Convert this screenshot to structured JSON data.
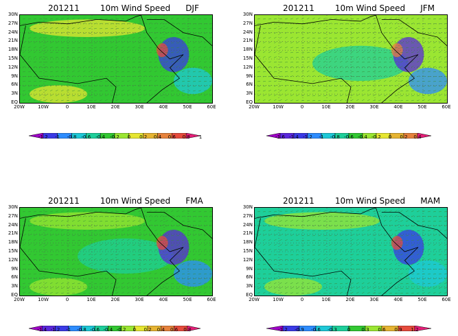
{
  "panels": [
    {
      "id": "djf",
      "date": "201211",
      "variable": "10m Wind Speed",
      "season": "DJF",
      "lat_labels": [
        "30N",
        "27N",
        "24N",
        "21N",
        "18N",
        "15N",
        "12N",
        "9N",
        "6N",
        "3N",
        "EQ"
      ],
      "lon_labels": [
        "20W",
        "10W",
        "0",
        "10E",
        "20E",
        "30E",
        "40E",
        "50E",
        "60E"
      ],
      "colorbar_labels": [
        "-1.2",
        "-1",
        "-0.8",
        "-0.6",
        "-0.4",
        "-0.2",
        "0",
        "0.2",
        "0.4",
        "0.6",
        "0.8",
        "1"
      ],
      "colorbar_colors": [
        "#a000c8",
        "#3a3ae6",
        "#2d8cff",
        "#1ec8d7",
        "#1ecf9a",
        "#32c832",
        "#9be632",
        "#e6e632",
        "#e6b432",
        "#e6823c",
        "#e64b3c",
        "#e61e78"
      ],
      "base_color": "#32c832"
    },
    {
      "id": "jfm",
      "date": "201211",
      "variable": "10m Wind Speed",
      "season": "JFM",
      "lat_labels": [
        "30N",
        "27N",
        "24N",
        "21N",
        "18N",
        "15N",
        "12N",
        "9N",
        "6N",
        "3N",
        "EQ"
      ],
      "lon_labels": [
        "20W",
        "10W",
        "0",
        "10E",
        "20E",
        "30E",
        "40E",
        "50E",
        "60E"
      ],
      "colorbar_labels": [
        "-1.6",
        "-1.4",
        "-1.2",
        "-1",
        "-0.8",
        "-0.6",
        "-0.4",
        "-0.2",
        "0",
        "0.2",
        "0.4"
      ],
      "colorbar_colors": [
        "#a000c8",
        "#5a28dc",
        "#3a3ae6",
        "#2d8cff",
        "#1ec8d7",
        "#1ecf9a",
        "#32c832",
        "#9be632",
        "#e6e632",
        "#e6b432",
        "#e6823c",
        "#e61e78"
      ],
      "base_color": "#9be632"
    },
    {
      "id": "fma",
      "date": "201211",
      "variable": "10m Wind Speed",
      "season": "FMA",
      "lat_labels": [
        "30N",
        "27N",
        "24N",
        "21N",
        "18N",
        "15N",
        "12N",
        "9N",
        "6N",
        "3N",
        "EQ"
      ],
      "lon_labels": [
        "20W",
        "10W",
        "0",
        "10E",
        "20E",
        "30E",
        "40E",
        "50E",
        "60E"
      ],
      "colorbar_labels": [
        "-1.4",
        "-1.2",
        "-1",
        "-0.8",
        "-0.6",
        "-0.4",
        "-0.2",
        "0",
        "0.2",
        "0.4",
        "0.6",
        "0.8"
      ],
      "colorbar_colors": [
        "#a000c8",
        "#5a28dc",
        "#3a3ae6",
        "#2d8cff",
        "#1ec8d7",
        "#1ecf9a",
        "#32c832",
        "#9be632",
        "#e6e632",
        "#e6b432",
        "#e6823c",
        "#e64b3c",
        "#e61e78"
      ],
      "base_color": "#32c832"
    },
    {
      "id": "mam",
      "date": "201211",
      "variable": "10m Wind Speed",
      "season": "MAM",
      "lat_labels": [
        "30N",
        "27N",
        "24N",
        "21N",
        "18N",
        "15N",
        "12N",
        "9N",
        "6N",
        "3N",
        "EQ"
      ],
      "lon_labels": [
        "20W",
        "10W",
        "0",
        "10E",
        "20E",
        "30E",
        "40E",
        "50E",
        "60E"
      ],
      "colorbar_labels": [
        "-1.2",
        "-0.9",
        "-0.6",
        "-0.3",
        "0",
        "0.3",
        "0.6",
        "0.9",
        "1.2"
      ],
      "colorbar_colors": [
        "#a000c8",
        "#3a3ae6",
        "#2d8cff",
        "#1ec8d7",
        "#1ecf9a",
        "#32c832",
        "#9be632",
        "#e6b432",
        "#e64b3c",
        "#e61e78"
      ],
      "base_color": "#1ecf9a"
    }
  ]
}
